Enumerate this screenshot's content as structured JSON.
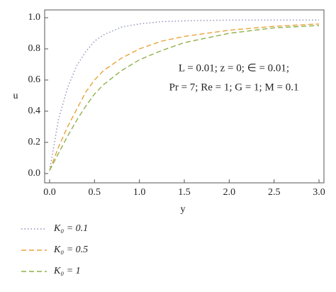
{
  "chart_data": {
    "type": "line",
    "xlabel": "y",
    "ylabel": "u",
    "annotations": [
      "L = 0.01; z = 0; ∈ = 0.01;",
      "Pr = 7; Re = 1; G = 1; M = 0.1"
    ],
    "x": [
      0,
      0.1,
      0.2,
      0.3,
      0.4,
      0.5,
      0.6,
      0.8,
      1.0,
      1.25,
      1.5,
      2.0,
      2.5,
      3.0
    ],
    "series": [
      {
        "name": "K₀ = 0.1",
        "color": "#8a90b8",
        "linestyle": "dotted",
        "values": [
          0.02,
          0.35,
          0.55,
          0.69,
          0.78,
          0.85,
          0.89,
          0.94,
          0.96,
          0.975,
          0.98,
          0.985,
          0.985,
          0.985
        ]
      },
      {
        "name": "K₀ = 0.5",
        "color": "#e8a33a",
        "linestyle": "dashed",
        "values": [
          0.02,
          0.17,
          0.3,
          0.41,
          0.52,
          0.6,
          0.66,
          0.74,
          0.8,
          0.85,
          0.88,
          0.92,
          0.945,
          0.96
        ]
      },
      {
        "name": "K₀ = 1",
        "color": "#8fb04a",
        "linestyle": "dashed",
        "values": [
          0.02,
          0.13,
          0.24,
          0.34,
          0.43,
          0.51,
          0.57,
          0.66,
          0.73,
          0.79,
          0.84,
          0.9,
          0.935,
          0.95
        ]
      }
    ],
    "xlim": [
      -0.055,
      3.055
    ],
    "ylim": [
      -0.06,
      1.05
    ],
    "xticks": [
      {
        "value": 0,
        "label": "0.0"
      },
      {
        "value": 0.5,
        "label": "0.5"
      },
      {
        "value": 1,
        "label": "1.0"
      },
      {
        "value": 1.5,
        "label": "1.5"
      },
      {
        "value": 2,
        "label": "2.0"
      },
      {
        "value": 2.5,
        "label": "2.5"
      },
      {
        "value": 3,
        "label": "3.0"
      }
    ],
    "yticks": [
      {
        "value": 0,
        "label": "0.0"
      },
      {
        "value": 0.2,
        "label": "0.2"
      },
      {
        "value": 0.4,
        "label": "0.4"
      },
      {
        "value": 0.6,
        "label": "0.6"
      },
      {
        "value": 0.8,
        "label": "0.8"
      },
      {
        "value": 1,
        "label": "1.0"
      }
    ]
  }
}
